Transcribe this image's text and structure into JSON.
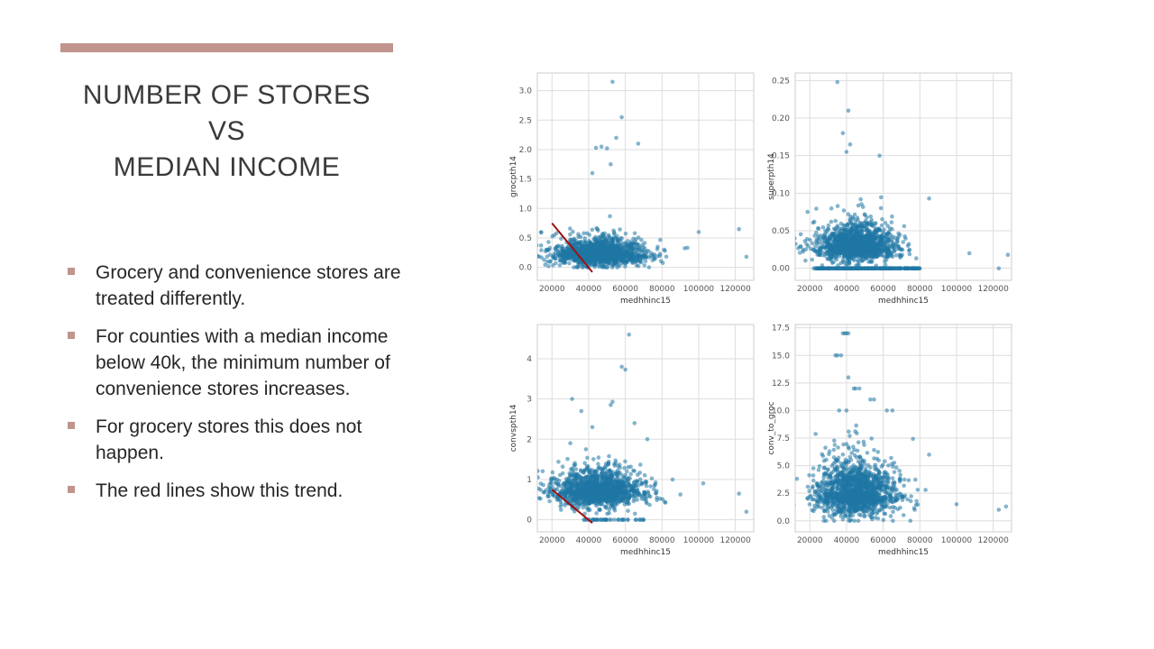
{
  "slide": {
    "title_lines": [
      "NUMBER OF STORES",
      "VS",
      "MEDIAN INCOME"
    ],
    "bullets": [
      "Grocery and convenience stores are treated differently.",
      "For counties with a median income below 40k, the minimum number of convenience stores increases.",
      "For grocery stores this does not happen.",
      "The red lines show this trend."
    ],
    "accent_color": "#c0958e",
    "point_color": "#1f77a4",
    "trend_color": "#a01010"
  },
  "chart_data": [
    {
      "type": "scatter",
      "title": "",
      "xlabel": "medhhinc15",
      "ylabel": "grocpth14",
      "xlim": [
        12000,
        130000
      ],
      "ylim": [
        -0.22,
        3.3
      ],
      "xticks": [
        20000,
        40000,
        60000,
        80000,
        100000,
        120000
      ],
      "yticks": [
        0.0,
        0.5,
        1.0,
        1.5,
        2.0,
        2.5,
        3.0
      ],
      "ytick_labels": [
        "0.0",
        "0.5",
        "1.0",
        "1.5",
        "2.0",
        "2.5",
        "3.0"
      ],
      "grid": true,
      "cluster": {
        "x_center": 46000,
        "x_spread": 12000,
        "y_center": 0.22,
        "y_spread": 0.18,
        "y_min": 0.0,
        "y_max": 1.3,
        "n": 1400
      },
      "outliers": [
        [
          53000,
          3.15
        ],
        [
          58000,
          2.55
        ],
        [
          67000,
          2.1
        ],
        [
          50000,
          2.02
        ],
        [
          44000,
          2.03
        ],
        [
          55000,
          2.2
        ],
        [
          47000,
          2.05
        ],
        [
          52000,
          1.75
        ],
        [
          42000,
          1.6
        ],
        [
          122000,
          0.65
        ],
        [
          126000,
          0.18
        ],
        [
          100000,
          0.6
        ]
      ],
      "trend_line": {
        "x": [
          20000,
          42000
        ],
        "y": [
          0.75,
          -0.08
        ]
      }
    },
    {
      "type": "scatter",
      "title": "",
      "xlabel": "medhhinc15",
      "ylabel": "superpth14",
      "xlim": [
        12000,
        130000
      ],
      "ylim": [
        -0.016,
        0.26
      ],
      "xticks": [
        20000,
        40000,
        60000,
        80000,
        100000,
        120000
      ],
      "yticks": [
        0.0,
        0.05,
        0.1,
        0.15,
        0.2,
        0.25
      ],
      "ytick_labels": [
        "0.00",
        "0.05",
        "0.10",
        "0.15",
        "0.20",
        "0.25"
      ],
      "grid": true,
      "cluster": {
        "x_center": 45000,
        "x_spread": 11000,
        "y_center": 0.03,
        "y_spread": 0.02,
        "y_min": 0.0,
        "y_max": 0.12,
        "n": 1300
      },
      "baseline_row": {
        "y": 0.0,
        "x_min": 22000,
        "x_max": 80000,
        "n": 250
      },
      "outliers": [
        [
          35000,
          0.248
        ],
        [
          41000,
          0.21
        ],
        [
          38000,
          0.18
        ],
        [
          42000,
          0.165
        ],
        [
          40000,
          0.155
        ],
        [
          58000,
          0.15
        ],
        [
          85000,
          0.093
        ],
        [
          123000,
          0.0
        ],
        [
          128000,
          0.018
        ],
        [
          107000,
          0.02
        ]
      ]
    },
    {
      "type": "scatter",
      "title": "",
      "xlabel": "medhhinc15",
      "ylabel": "convspth14",
      "xlim": [
        12000,
        130000
      ],
      "ylim": [
        -0.3,
        4.85
      ],
      "xticks": [
        20000,
        40000,
        60000,
        80000,
        100000,
        120000
      ],
      "yticks": [
        0,
        1,
        2,
        3,
        4
      ],
      "ytick_labels": [
        "0",
        "1",
        "2",
        "3",
        "4"
      ],
      "grid": true,
      "cluster": {
        "x_center": 46000,
        "x_spread": 12000,
        "y_center": 0.7,
        "y_spread": 0.35,
        "y_min": 0.15,
        "y_max": 2.0,
        "n": 1400
      },
      "baseline_row": {
        "y": 0.0,
        "x_min": 35000,
        "x_max": 70000,
        "n": 40
      },
      "outliers": [
        [
          62000,
          4.6
        ],
        [
          58000,
          3.8
        ],
        [
          60000,
          3.73
        ],
        [
          31000,
          3.0
        ],
        [
          36000,
          2.7
        ],
        [
          53000,
          2.93
        ],
        [
          52000,
          2.85
        ],
        [
          42000,
          2.3
        ],
        [
          65000,
          2.4
        ],
        [
          72000,
          2.0
        ],
        [
          122000,
          0.65
        ],
        [
          126000,
          0.2
        ],
        [
          30000,
          1.9
        ]
      ],
      "trend_line": {
        "x": [
          20000,
          42000
        ],
        "y": [
          0.75,
          -0.08
        ]
      }
    },
    {
      "type": "scatter",
      "title": "",
      "xlabel": "medhhinc15",
      "ylabel": "conv_to_groc",
      "xlim": [
        12000,
        130000
      ],
      "ylim": [
        -1.0,
        17.8
      ],
      "xticks": [
        20000,
        40000,
        60000,
        80000,
        100000,
        120000
      ],
      "yticks": [
        0.0,
        2.5,
        5.0,
        7.5,
        10.0,
        12.5,
        15.0,
        17.5
      ],
      "ytick_labels": [
        "0.0",
        "2.5",
        "5.0",
        "7.5",
        "10.0",
        "12.5",
        "15.0",
        "17.5"
      ],
      "grid": true,
      "cluster": {
        "x_center": 45000,
        "x_spread": 11000,
        "y_center": 2.5,
        "y_spread": 2.0,
        "y_min": 0.0,
        "y_max": 9.0,
        "n": 1400
      },
      "outliers": [
        [
          38000,
          17.0
        ],
        [
          39000,
          17.0
        ],
        [
          40000,
          17.0
        ],
        [
          41000,
          17.0
        ],
        [
          34000,
          15.0
        ],
        [
          35000,
          15.0
        ],
        [
          37000,
          15.0
        ],
        [
          44000,
          12.0
        ],
        [
          45000,
          12.0
        ],
        [
          47000,
          12.0
        ],
        [
          53000,
          11.0
        ],
        [
          55000,
          11.0
        ],
        [
          62000,
          10.0
        ],
        [
          65000,
          10.0
        ],
        [
          41000,
          13.0
        ],
        [
          40000,
          10.0
        ],
        [
          36000,
          10.0
        ],
        [
          85000,
          6.0
        ],
        [
          100000,
          1.5
        ],
        [
          123000,
          1.0
        ],
        [
          127000,
          1.3
        ]
      ]
    }
  ]
}
